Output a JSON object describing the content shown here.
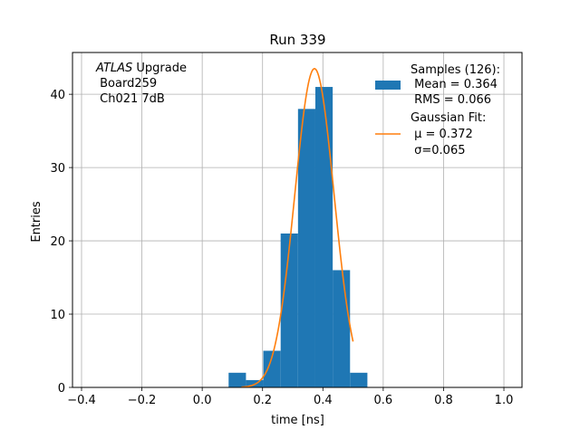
{
  "chart_data": {
    "type": "bar",
    "title": "Run 339",
    "xlabel": "time [ns]",
    "ylabel": "Entries",
    "xlim": [
      -0.43,
      1.06
    ],
    "ylim": [
      0,
      45.7
    ],
    "x_ticks": [
      -0.4,
      -0.2,
      0.0,
      0.2,
      0.4,
      0.6,
      0.8,
      1.0
    ],
    "x_tick_labels": [
      "−0.4",
      "−0.2",
      "0.0",
      "0.2",
      "0.4",
      "0.6",
      "0.8",
      "1.0"
    ],
    "y_ticks": [
      0,
      10,
      20,
      30,
      40
    ],
    "y_tick_labels": [
      "0",
      "10",
      "20",
      "30",
      "40"
    ],
    "grid": true,
    "histogram": {
      "name": "Samples (126):",
      "color": "#1f77b4",
      "bin_width": 0.0575,
      "bin_left_edges": [
        0.0875,
        0.145,
        0.2025,
        0.26,
        0.3175,
        0.375,
        0.4325,
        0.49
      ],
      "counts": [
        2,
        1,
        5,
        21,
        38,
        41,
        16,
        2
      ]
    },
    "fit": {
      "name": "Gaussian Fit:",
      "color": "#ff7f0e",
      "type": "gaussian",
      "mu": 0.372,
      "sigma": 0.065,
      "amplitude": 43.5,
      "x_range": [
        0.13,
        0.5
      ]
    },
    "legend": {
      "placement": "top-right",
      "entries": [
        {
          "series": "histogram",
          "lines": [
            "Samples (126):",
            " Mean = 0.364",
            " RMS = 0.066"
          ]
        },
        {
          "series": "fit",
          "lines": [
            "Gaussian Fit:",
            " μ = 0.372",
            " σ=0.065"
          ]
        }
      ]
    },
    "annotation": {
      "placement": "top-left",
      "italic_part": "ATLAS",
      "lines": [
        " Upgrade",
        " Board259",
        " Ch021 7dB"
      ]
    }
  }
}
